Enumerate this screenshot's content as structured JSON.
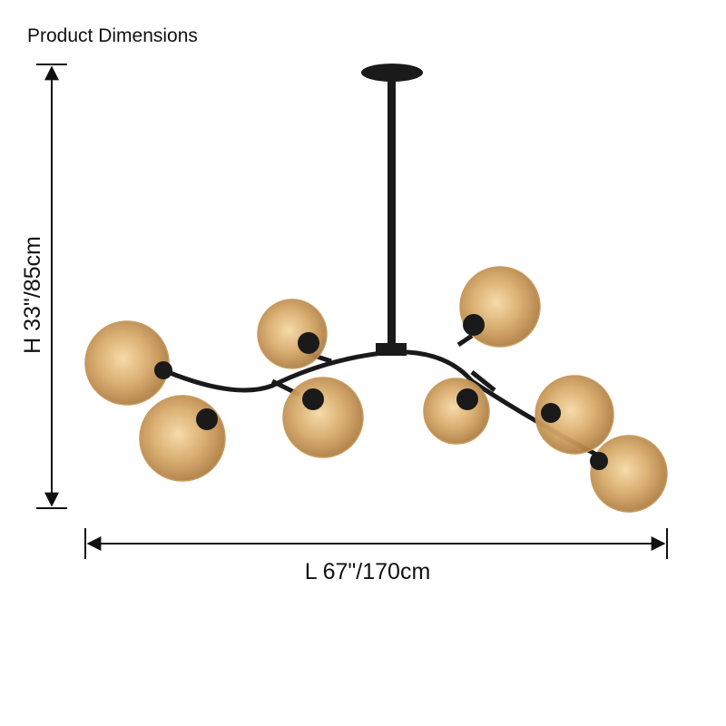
{
  "header": {
    "title": "Product Dimensions"
  },
  "dimensions": {
    "height": "H 33\"/85cm",
    "length": "L 67\"/170cm"
  }
}
